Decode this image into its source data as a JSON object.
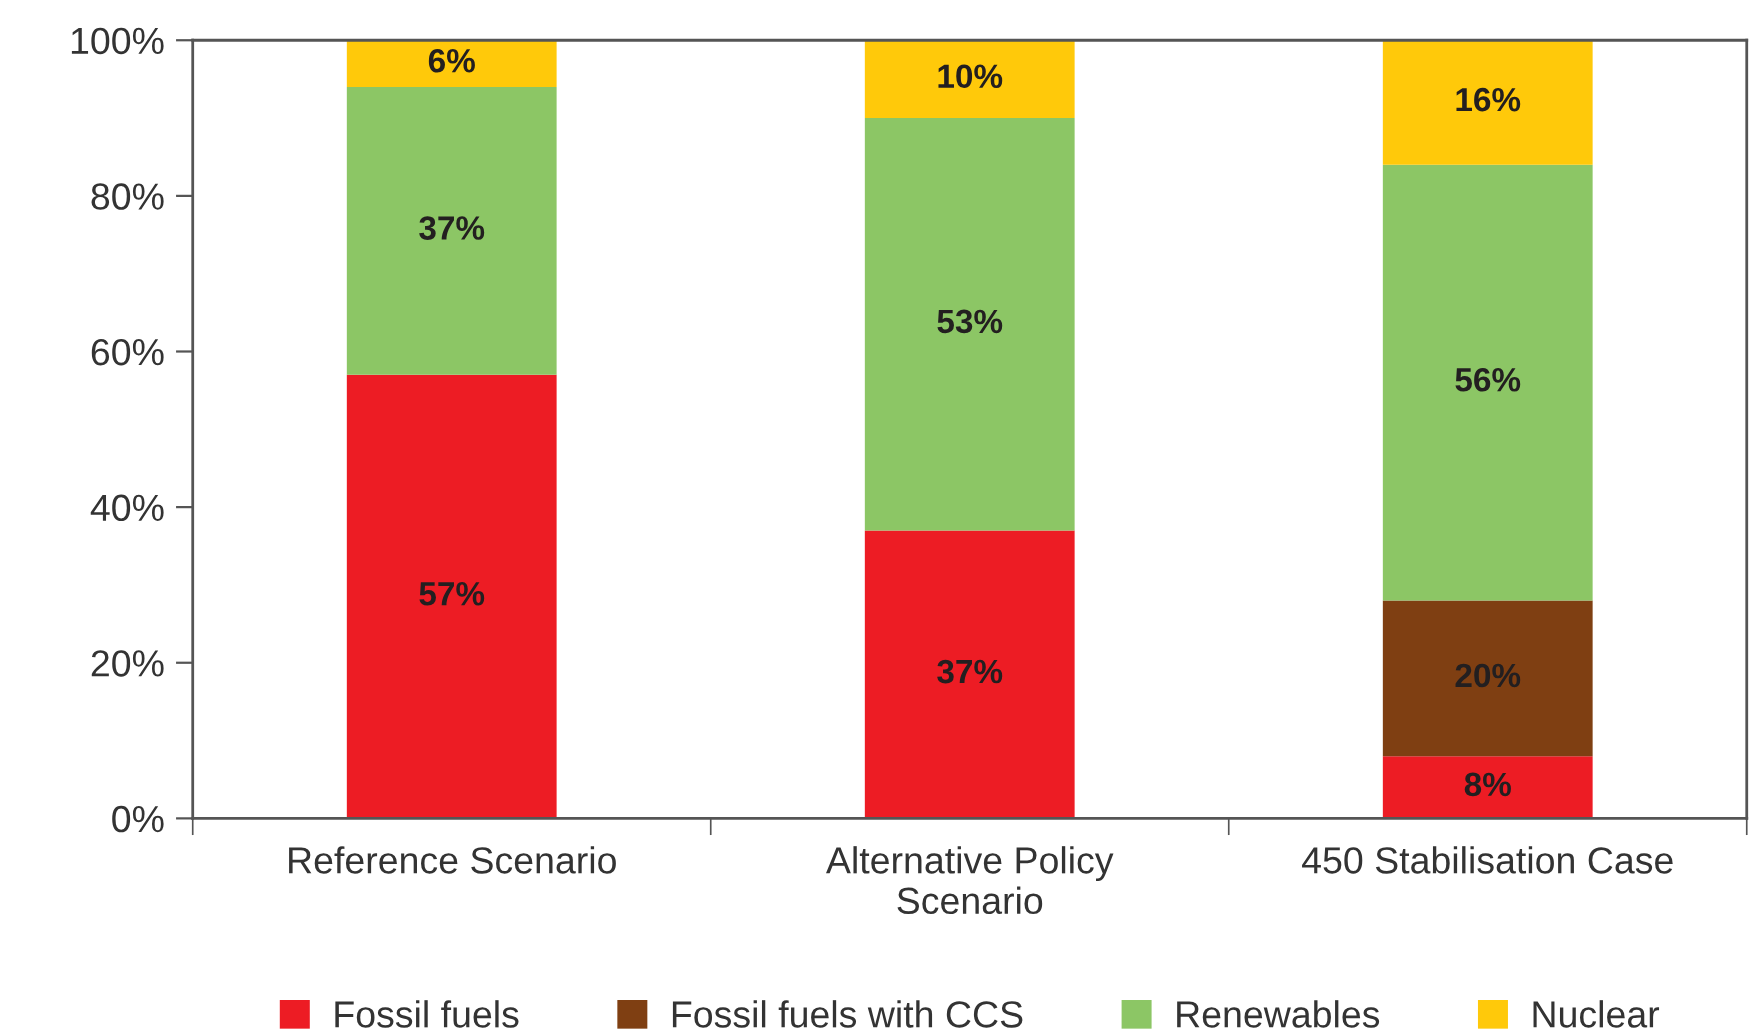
{
  "chart_data": {
    "type": "bar",
    "stacked": true,
    "categories": [
      "Reference Scenario",
      "Alternative Policy\nScenario",
      "450 Stabilisation Case"
    ],
    "series": [
      {
        "name": "Fossil fuels",
        "color": "#ed1c24",
        "values": [
          57,
          37,
          8
        ],
        "value_labels": [
          "57%",
          "37%",
          "8%"
        ]
      },
      {
        "name": "Fossil fuels with CCS",
        "color": "#7f3f12",
        "values": [
          null,
          null,
          20
        ],
        "value_labels": [
          null,
          null,
          "20%"
        ]
      },
      {
        "name": "Renewables",
        "color": "#8cc665",
        "values": [
          37,
          53,
          56
        ],
        "value_labels": [
          "37%",
          "53%",
          "56%"
        ]
      },
      {
        "name": "Nuclear",
        "color": "#ffc90a",
        "values": [
          6,
          10,
          16
        ],
        "value_labels": [
          "6%",
          "10%",
          "16%"
        ]
      }
    ],
    "ylim": [
      0,
      100
    ],
    "yticks": [
      {
        "value": 0,
        "label": "0%"
      },
      {
        "value": 20,
        "label": "20%"
      },
      {
        "value": 40,
        "label": "40%"
      },
      {
        "value": 60,
        "label": "60%"
      },
      {
        "value": 80,
        "label": "80%"
      },
      {
        "value": 100,
        "label": "100%"
      }
    ],
    "grid": false,
    "legend": "bottom"
  }
}
